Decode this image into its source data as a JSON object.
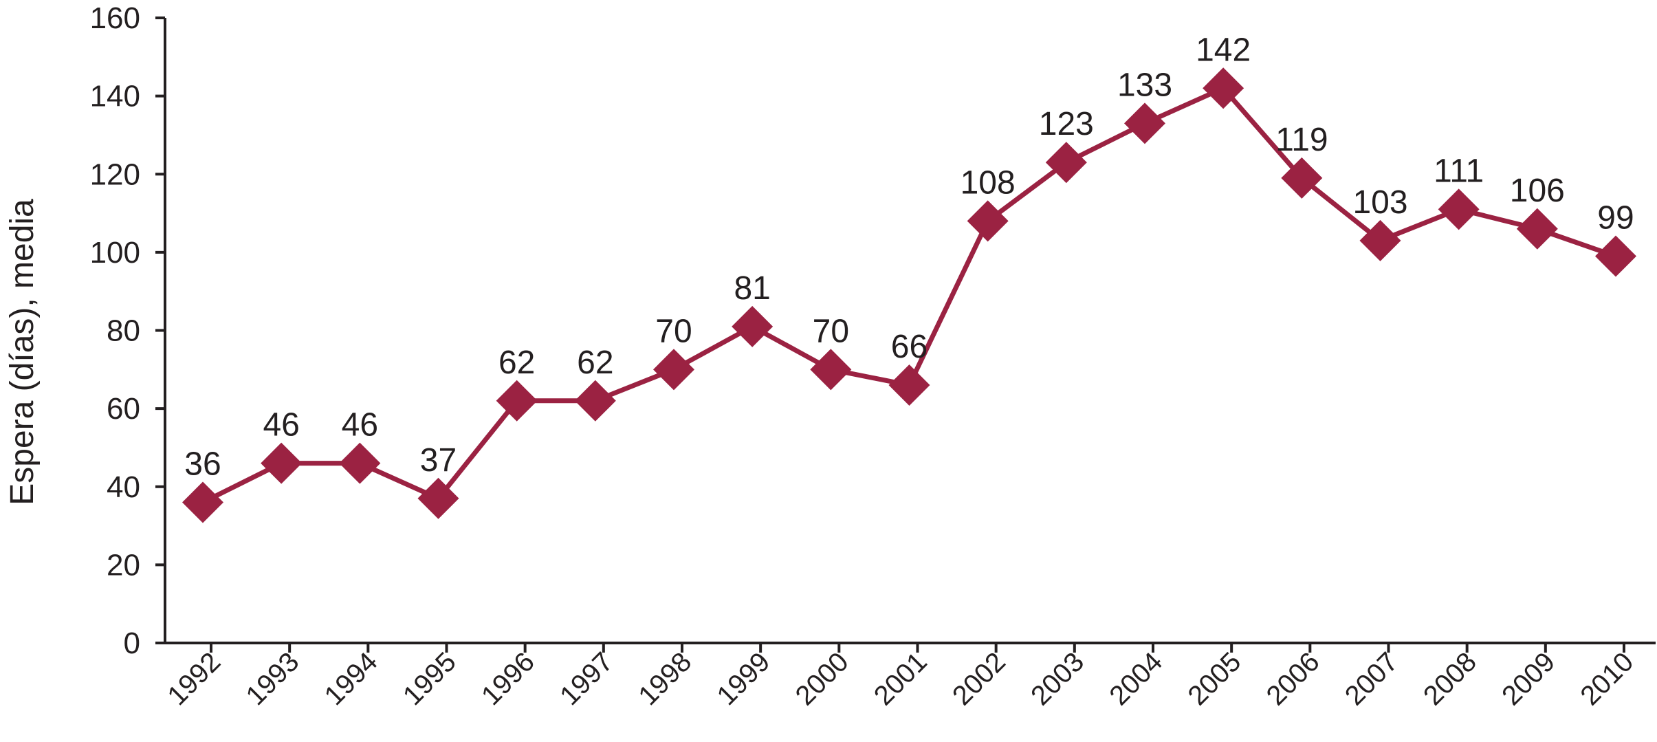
{
  "chart_data": {
    "type": "line",
    "title": "",
    "xlabel": "",
    "ylabel": "Espera (días), media",
    "categories": [
      "1992",
      "1993",
      "1994",
      "1995",
      "1996",
      "1997",
      "1998",
      "1999",
      "2000",
      "2001",
      "2002",
      "2003",
      "2004",
      "2005",
      "2006",
      "2007",
      "2008",
      "2009",
      "2010"
    ],
    "series": [
      {
        "values": [
          36,
          46,
          46,
          37,
          62,
          62,
          70,
          81,
          70,
          66,
          108,
          123,
          133,
          142,
          119,
          103,
          111,
          106,
          99
        ],
        "color": "#9b2242",
        "marker": "diamond",
        "data_labels": true
      }
    ],
    "ylim": [
      0,
      160
    ],
    "yticks": [
      0,
      20,
      40,
      60,
      80,
      100,
      120,
      140,
      160
    ],
    "grid": false,
    "legend": "none",
    "axis_color": "#231f20"
  }
}
